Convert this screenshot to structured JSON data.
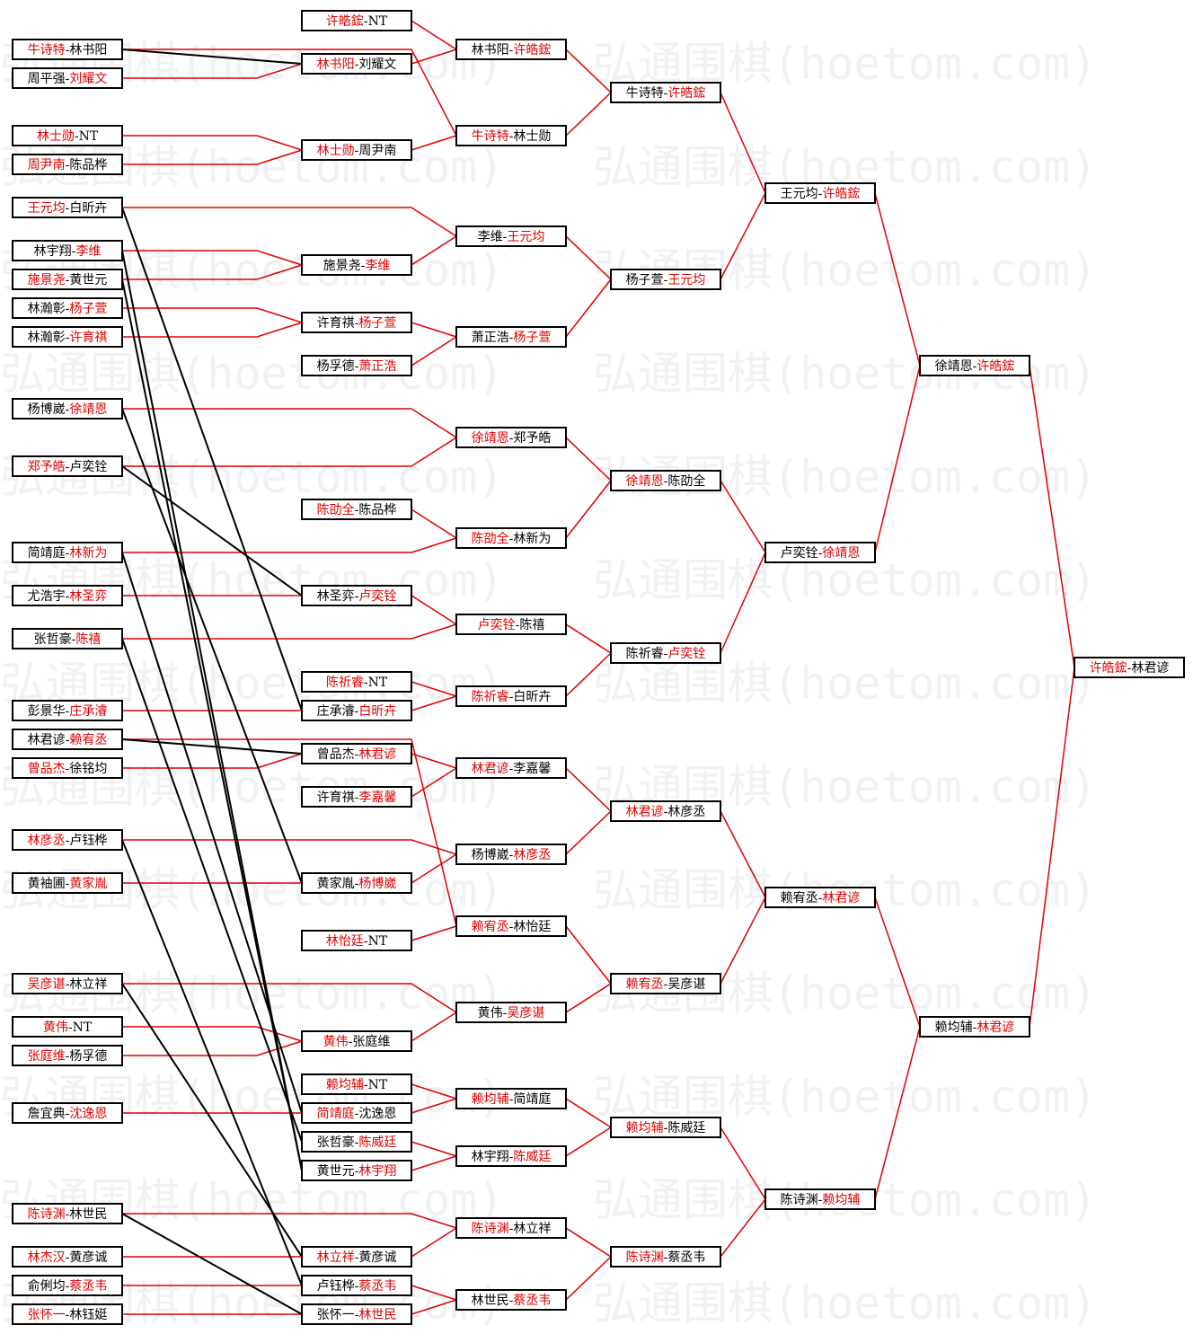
{
  "watermark": "弘通围棋(hoetom.com)",
  "sep": "-",
  "columns": [
    [
      {
        "p": [
          "牛诗特",
          "林书阳"
        ],
        "red": 0
      },
      {
        "p": [
          "周平强",
          "刘耀文"
        ],
        "red": 1
      },
      {
        "p": [
          "林士勋",
          "NT"
        ],
        "red": 0
      },
      {
        "p": [
          "周尹南",
          "陈品桦"
        ],
        "red": 0
      },
      {
        "p": [
          "王元均",
          "白昕卉"
        ],
        "red": 0
      },
      {
        "p": [
          "林宇翔",
          "李维"
        ],
        "red": 1
      },
      {
        "p": [
          "施景尧",
          "黄世元"
        ],
        "red": 0
      },
      {
        "p": [
          "林瀚彰",
          "杨子萱"
        ],
        "red": 1
      },
      {
        "p": [
          "林瀚彰",
          "许育祺"
        ],
        "red": 1
      },
      {
        "p": [
          "杨博崴",
          "徐靖恩"
        ],
        "red": 1
      },
      {
        "p": [
          "郑予皓",
          "卢奕铨"
        ],
        "red": 0
      },
      {
        "p": [
          "简靖庭",
          "林新为"
        ],
        "red": 1
      },
      {
        "p": [
          "尤浩宇",
          "林圣弈"
        ],
        "red": 1
      },
      {
        "p": [
          "张哲豪",
          "陈禧"
        ],
        "red": 1
      },
      {
        "p": [
          "彭景华",
          "庄承濬"
        ],
        "red": 1
      },
      {
        "p": [
          "林君谚",
          "赖宥丞"
        ],
        "red": 1
      },
      {
        "p": [
          "曾品杰",
          "徐铭均"
        ],
        "red": 0
      },
      {
        "p": [
          "林彦丞",
          "卢钰桦"
        ],
        "red": 0
      },
      {
        "p": [
          "黄袖圃",
          "黄家胤"
        ],
        "red": 1
      },
      {
        "p": [
          "吴彦谌",
          "林立祥"
        ],
        "red": 0
      },
      {
        "p": [
          "黄伟",
          "NT"
        ],
        "red": 0
      },
      {
        "p": [
          "张庭维",
          "杨孚德"
        ],
        "red": 0
      },
      {
        "p": [
          "詹宜典",
          "沈逸恩"
        ],
        "red": 1
      },
      {
        "p": [
          "陈诗渊",
          "林世民"
        ],
        "red": 0
      },
      {
        "p": [
          "林杰汉",
          "黄彦诚"
        ],
        "red": 0
      },
      {
        "p": [
          "俞俐均",
          "蔡丞韦"
        ],
        "red": 1
      },
      {
        "p": [
          "张怀一",
          "林钰娗"
        ],
        "red": 0
      }
    ],
    [
      {
        "p": [
          "许皓鋐",
          "NT"
        ],
        "red": 0
      },
      {
        "p": [
          "林书阳",
          "刘耀文"
        ],
        "red": 0
      },
      {
        "p": [
          "林士勋",
          "周尹南"
        ],
        "red": 0
      },
      {
        "p": [
          "施景尧",
          "李维"
        ],
        "red": 1
      },
      {
        "p": [
          "许育祺",
          "杨子萱"
        ],
        "red": 1
      },
      {
        "p": [
          "杨孚德",
          "萧正浩"
        ],
        "red": 1
      },
      {
        "p": [
          "陈劭全",
          "陈品桦"
        ],
        "red": 0
      },
      {
        "p": [
          "林圣弈",
          "卢奕铨"
        ],
        "red": 1
      },
      {
        "p": [
          "陈祈睿",
          "NT"
        ],
        "red": 0
      },
      {
        "p": [
          "庄承濬",
          "白昕卉"
        ],
        "red": 1
      },
      {
        "p": [
          "曾品杰",
          "林君谚"
        ],
        "red": 1
      },
      {
        "p": [
          "许育祺",
          "李嘉馨"
        ],
        "red": 1
      },
      {
        "p": [
          "黄家胤",
          "杨博崴"
        ],
        "red": 1
      },
      {
        "p": [
          "林怡廷",
          "NT"
        ],
        "red": 0
      },
      {
        "p": [
          "黄伟",
          "张庭维"
        ],
        "red": 0
      },
      {
        "p": [
          "赖均辅",
          "NT"
        ],
        "red": 0
      },
      {
        "p": [
          "简靖庭",
          "沈逸恩"
        ],
        "red": 0
      },
      {
        "p": [
          "张哲豪",
          "陈威廷"
        ],
        "red": 1
      },
      {
        "p": [
          "黄世元",
          "林宇翔"
        ],
        "red": 1
      },
      {
        "p": [
          "林立祥",
          "黄彦诚"
        ],
        "red": 0
      },
      {
        "p": [
          "卢钰桦",
          "蔡丞韦"
        ],
        "red": 1
      },
      {
        "p": [
          "张怀一",
          "林世民"
        ],
        "red": 1
      }
    ],
    [
      {
        "p": [
          "林书阳",
          "许皓鋐"
        ],
        "red": 1
      },
      {
        "p": [
          "牛诗特",
          "林士勋"
        ],
        "red": 0
      },
      {
        "p": [
          "李维",
          "王元均"
        ],
        "red": 1
      },
      {
        "p": [
          "萧正浩",
          "杨子萱"
        ],
        "red": 1
      },
      {
        "p": [
          "徐靖恩",
          "郑予皓"
        ],
        "red": 0
      },
      {
        "p": [
          "陈劭全",
          "林新为"
        ],
        "red": 0
      },
      {
        "p": [
          "卢奕铨",
          "陈禧"
        ],
        "red": 0
      },
      {
        "p": [
          "陈祈睿",
          "白昕卉"
        ],
        "red": 0
      },
      {
        "p": [
          "林君谚",
          "李嘉馨"
        ],
        "red": 0
      },
      {
        "p": [
          "杨博崴",
          "林彦丞"
        ],
        "red": 1
      },
      {
        "p": [
          "赖宥丞",
          "林怡廷"
        ],
        "red": 0
      },
      {
        "p": [
          "黄伟",
          "吴彦谌"
        ],
        "red": 1
      },
      {
        "p": [
          "赖均辅",
          "简靖庭"
        ],
        "red": 0
      },
      {
        "p": [
          "林宇翔",
          "陈威廷"
        ],
        "red": 1
      },
      {
        "p": [
          "陈诗渊",
          "林立祥"
        ],
        "red": 0
      },
      {
        "p": [
          "林世民",
          "蔡丞韦"
        ],
        "red": 1
      }
    ],
    [
      {
        "p": [
          "牛诗特",
          "许皓鋐"
        ],
        "red": 1
      },
      {
        "p": [
          "杨子萱",
          "王元均"
        ],
        "red": 1
      },
      {
        "p": [
          "徐靖恩",
          "陈劭全"
        ],
        "red": 0
      },
      {
        "p": [
          "陈祈睿",
          "卢奕铨"
        ],
        "red": 1
      },
      {
        "p": [
          "林君谚",
          "林彦丞"
        ],
        "red": 0
      },
      {
        "p": [
          "赖宥丞",
          "吴彦谌"
        ],
        "red": 0
      },
      {
        "p": [
          "赖均辅",
          "陈威廷"
        ],
        "red": 0
      },
      {
        "p": [
          "陈诗渊",
          "蔡丞韦"
        ],
        "red": 0
      }
    ],
    [
      {
        "p": [
          "王元均",
          "许皓鋐"
        ],
        "red": 1
      },
      {
        "p": [
          "卢奕铨",
          "徐靖恩"
        ],
        "red": 1
      },
      {
        "p": [
          "赖宥丞",
          "林君谚"
        ],
        "red": 1
      },
      {
        "p": [
          "陈诗渊",
          "赖均辅"
        ],
        "red": 1
      }
    ],
    [
      {
        "p": [
          "徐靖恩",
          "许皓鋐"
        ],
        "red": 1
      },
      {
        "p": [
          "赖均辅",
          "林君谚"
        ],
        "red": 1
      }
    ],
    [
      {
        "p": [
          "许皓鋐",
          "林君谚"
        ],
        "red": 0
      }
    ]
  ]
}
